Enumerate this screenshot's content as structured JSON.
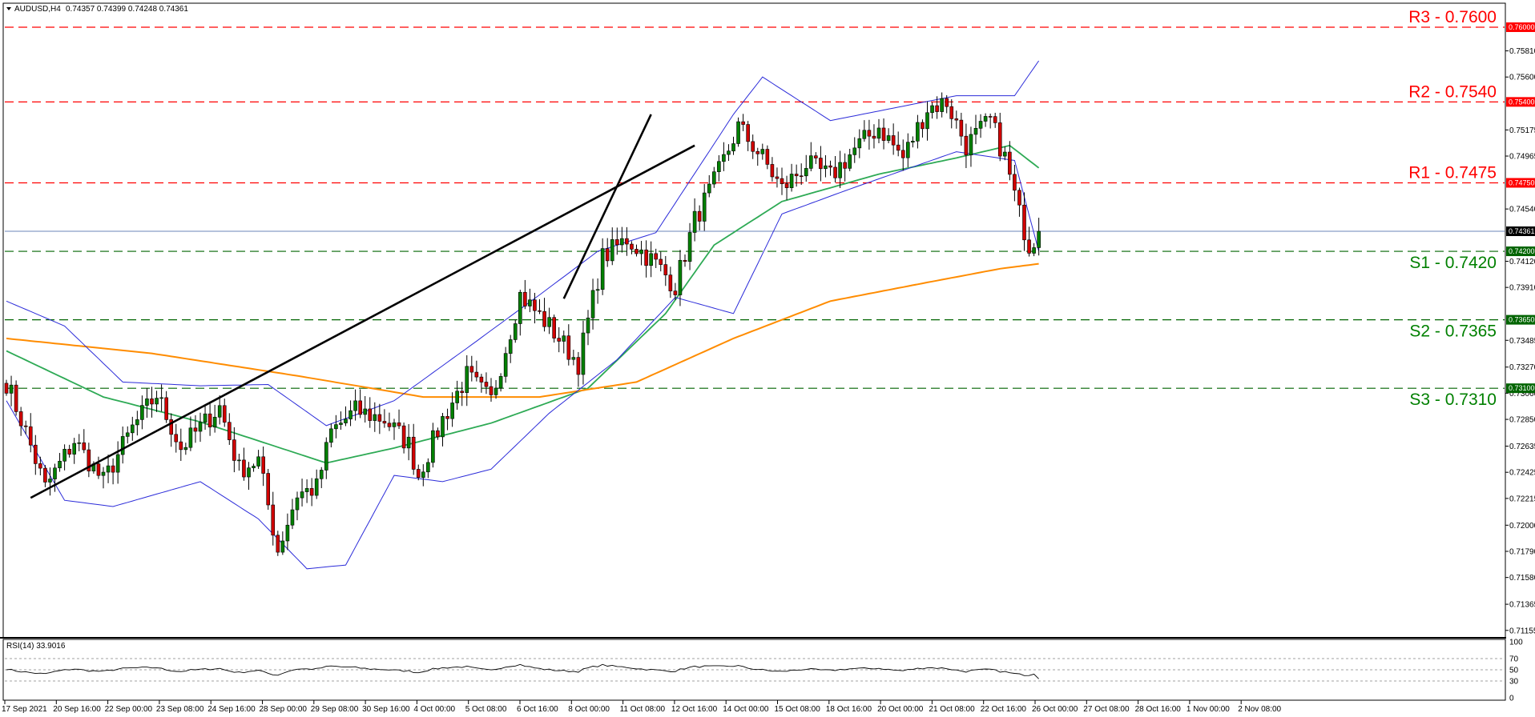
{
  "header": {
    "symbol": "AUDUSD,H4",
    "ohlc": "0.74357 0.74399 0.74248 0.74361"
  },
  "rsi_header": "RSI(14) 33.9016",
  "price_tag": "0.74361",
  "levels": [
    {
      "label": "R3 - 0.7600",
      "tag": "0.76000",
      "value": 0.76,
      "color": "#ff0000",
      "text_color": "#ff0000"
    },
    {
      "label": "R2 - 0.7540",
      "tag": "0.75400",
      "value": 0.754,
      "color": "#ff0000",
      "text_color": "#ff0000"
    },
    {
      "label": "R1 - 0.7475",
      "tag": "0.74750",
      "value": 0.7475,
      "color": "#ff0000",
      "text_color": "#ff0000"
    },
    {
      "label": "S1 - 0.7420",
      "tag": "0.74200",
      "value": 0.742,
      "color": "#006400",
      "text_color": "#008000"
    },
    {
      "label": "S2 - 0.7365",
      "tag": "0.73650",
      "value": 0.7365,
      "color": "#006400",
      "text_color": "#008000"
    },
    {
      "label": "S3 - 0.7310",
      "tag": "0.73100",
      "value": 0.731,
      "color": "#006400",
      "text_color": "#008000"
    }
  ],
  "chart_data": {
    "type": "candlestick",
    "title": "AUDUSD,H4",
    "ylim": [
      0.71115,
      0.7618
    ],
    "y_ticks": [
      "0.75810",
      "0.75600",
      "0.75175",
      "0.74965",
      "0.74540",
      "0.74120",
      "0.73910",
      "0.73485",
      "0.73270",
      "0.73060",
      "0.72850",
      "0.72635",
      "0.72425",
      "0.72215",
      "0.72000",
      "0.71790",
      "0.71580",
      "0.71365",
      "0.71155"
    ],
    "x_ticks": [
      "17 Sep 2021",
      "20 Sep 16:00",
      "22 Sep 00:00",
      "23 Sep 08:00",
      "24 Sep 16:00",
      "28 Sep 00:00",
      "29 Sep 08:00",
      "30 Sep 16:00",
      "4 Oct 00:00",
      "5 Oct 08:00",
      "6 Oct 16:00",
      "8 Oct 00:00",
      "11 Oct 08:00",
      "12 Oct 16:00",
      "14 Oct 00:00",
      "15 Oct 08:00",
      "18 Oct 16:00",
      "20 Oct 00:00",
      "21 Oct 08:00",
      "22 Oct 16:00",
      "26 Oct 00:00",
      "27 Oct 08:00",
      "28 Oct 16:00",
      "1 Nov 00:00",
      "2 Nov 08:00"
    ],
    "close_anchors": [
      {
        "i": 0,
        "v": 0.7315
      },
      {
        "i": 4,
        "v": 0.7275
      },
      {
        "i": 8,
        "v": 0.723
      },
      {
        "i": 14,
        "v": 0.7268
      },
      {
        "i": 20,
        "v": 0.7235
      },
      {
        "i": 26,
        "v": 0.7278
      },
      {
        "i": 31,
        "v": 0.7305
      },
      {
        "i": 36,
        "v": 0.7262
      },
      {
        "i": 44,
        "v": 0.7295
      },
      {
        "i": 48,
        "v": 0.7245
      },
      {
        "i": 52,
        "v": 0.7252
      },
      {
        "i": 56,
        "v": 0.718
      },
      {
        "i": 60,
        "v": 0.7225
      },
      {
        "i": 64,
        "v": 0.723
      },
      {
        "i": 67,
        "v": 0.7275
      },
      {
        "i": 72,
        "v": 0.7292
      },
      {
        "i": 78,
        "v": 0.7285
      },
      {
        "i": 83,
        "v": 0.7265
      },
      {
        "i": 85,
        "v": 0.724
      },
      {
        "i": 90,
        "v": 0.7285
      },
      {
        "i": 95,
        "v": 0.732
      },
      {
        "i": 100,
        "v": 0.73
      },
      {
        "i": 106,
        "v": 0.7385
      },
      {
        "i": 112,
        "v": 0.736
      },
      {
        "i": 118,
        "v": 0.733
      },
      {
        "i": 123,
        "v": 0.7415
      },
      {
        "i": 128,
        "v": 0.743
      },
      {
        "i": 134,
        "v": 0.741
      },
      {
        "i": 138,
        "v": 0.7392
      },
      {
        "i": 142,
        "v": 0.7445
      },
      {
        "i": 146,
        "v": 0.7475
      },
      {
        "i": 151,
        "v": 0.752
      },
      {
        "i": 156,
        "v": 0.7495
      },
      {
        "i": 160,
        "v": 0.747
      },
      {
        "i": 165,
        "v": 0.749
      },
      {
        "i": 170,
        "v": 0.748
      },
      {
        "i": 175,
        "v": 0.7502
      },
      {
        "i": 180,
        "v": 0.752
      },
      {
        "i": 185,
        "v": 0.7495
      },
      {
        "i": 190,
        "v": 0.7535
      },
      {
        "i": 194,
        "v": 0.754
      },
      {
        "i": 198,
        "v": 0.7505
      },
      {
        "i": 203,
        "v": 0.7525
      },
      {
        "i": 206,
        "v": 0.7495
      },
      {
        "i": 209,
        "v": 0.745
      },
      {
        "i": 211,
        "v": 0.7425
      },
      {
        "i": 213,
        "v": 0.7436
      }
    ],
    "bands": {
      "ma_green": [
        [
          0,
          0.734
        ],
        [
          20,
          0.7303
        ],
        [
          40,
          0.7283
        ],
        [
          66,
          0.725
        ],
        [
          80,
          0.7262
        ],
        [
          100,
          0.7282
        ],
        [
          120,
          0.731
        ],
        [
          136,
          0.737
        ],
        [
          146,
          0.7425
        ],
        [
          160,
          0.746
        ],
        [
          180,
          0.7482
        ],
        [
          196,
          0.7495
        ],
        [
          207,
          0.7505
        ],
        [
          213,
          0.7487
        ]
      ],
      "ma_orange": [
        [
          0,
          0.735
        ],
        [
          30,
          0.7338
        ],
        [
          60,
          0.732
        ],
        [
          86,
          0.7303
        ],
        [
          110,
          0.7303
        ],
        [
          130,
          0.7315
        ],
        [
          150,
          0.735
        ],
        [
          170,
          0.738
        ],
        [
          190,
          0.7395
        ],
        [
          205,
          0.7406
        ],
        [
          213,
          0.741
        ]
      ],
      "bb_upper": [
        [
          0,
          0.738
        ],
        [
          12,
          0.736
        ],
        [
          24,
          0.7315
        ],
        [
          40,
          0.7312
        ],
        [
          54,
          0.7313
        ],
        [
          66,
          0.728
        ],
        [
          80,
          0.73
        ],
        [
          96,
          0.7345
        ],
        [
          110,
          0.7385
        ],
        [
          122,
          0.742
        ],
        [
          134,
          0.7435
        ],
        [
          150,
          0.753
        ],
        [
          156,
          0.756
        ],
        [
          170,
          0.7525
        ],
        [
          196,
          0.7545
        ],
        [
          208,
          0.7545
        ],
        [
          213,
          0.7573
        ]
      ],
      "bb_lower": [
        [
          0,
          0.73
        ],
        [
          12,
          0.722
        ],
        [
          22,
          0.7215
        ],
        [
          40,
          0.7235
        ],
        [
          52,
          0.7205
        ],
        [
          62,
          0.7165
        ],
        [
          70,
          0.7168
        ],
        [
          80,
          0.724
        ],
        [
          90,
          0.7235
        ],
        [
          100,
          0.7245
        ],
        [
          112,
          0.729
        ],
        [
          126,
          0.7333
        ],
        [
          138,
          0.7383
        ],
        [
          150,
          0.737
        ],
        [
          160,
          0.745
        ],
        [
          174,
          0.747
        ],
        [
          196,
          0.75
        ],
        [
          208,
          0.7493
        ],
        [
          213,
          0.742
        ]
      ]
    },
    "trendlines": [
      {
        "from": [
          0.7222,
          5
        ],
        "to": [
          0.7505,
          142
        ]
      },
      {
        "from": [
          0.7382,
          115
        ],
        "to": [
          0.753,
          133
        ]
      }
    ],
    "rsi": {
      "levels": [
        70,
        50,
        30
      ],
      "y_ticks": [
        "100",
        "70",
        "50",
        "30",
        "0"
      ],
      "last": 33.9016
    }
  }
}
